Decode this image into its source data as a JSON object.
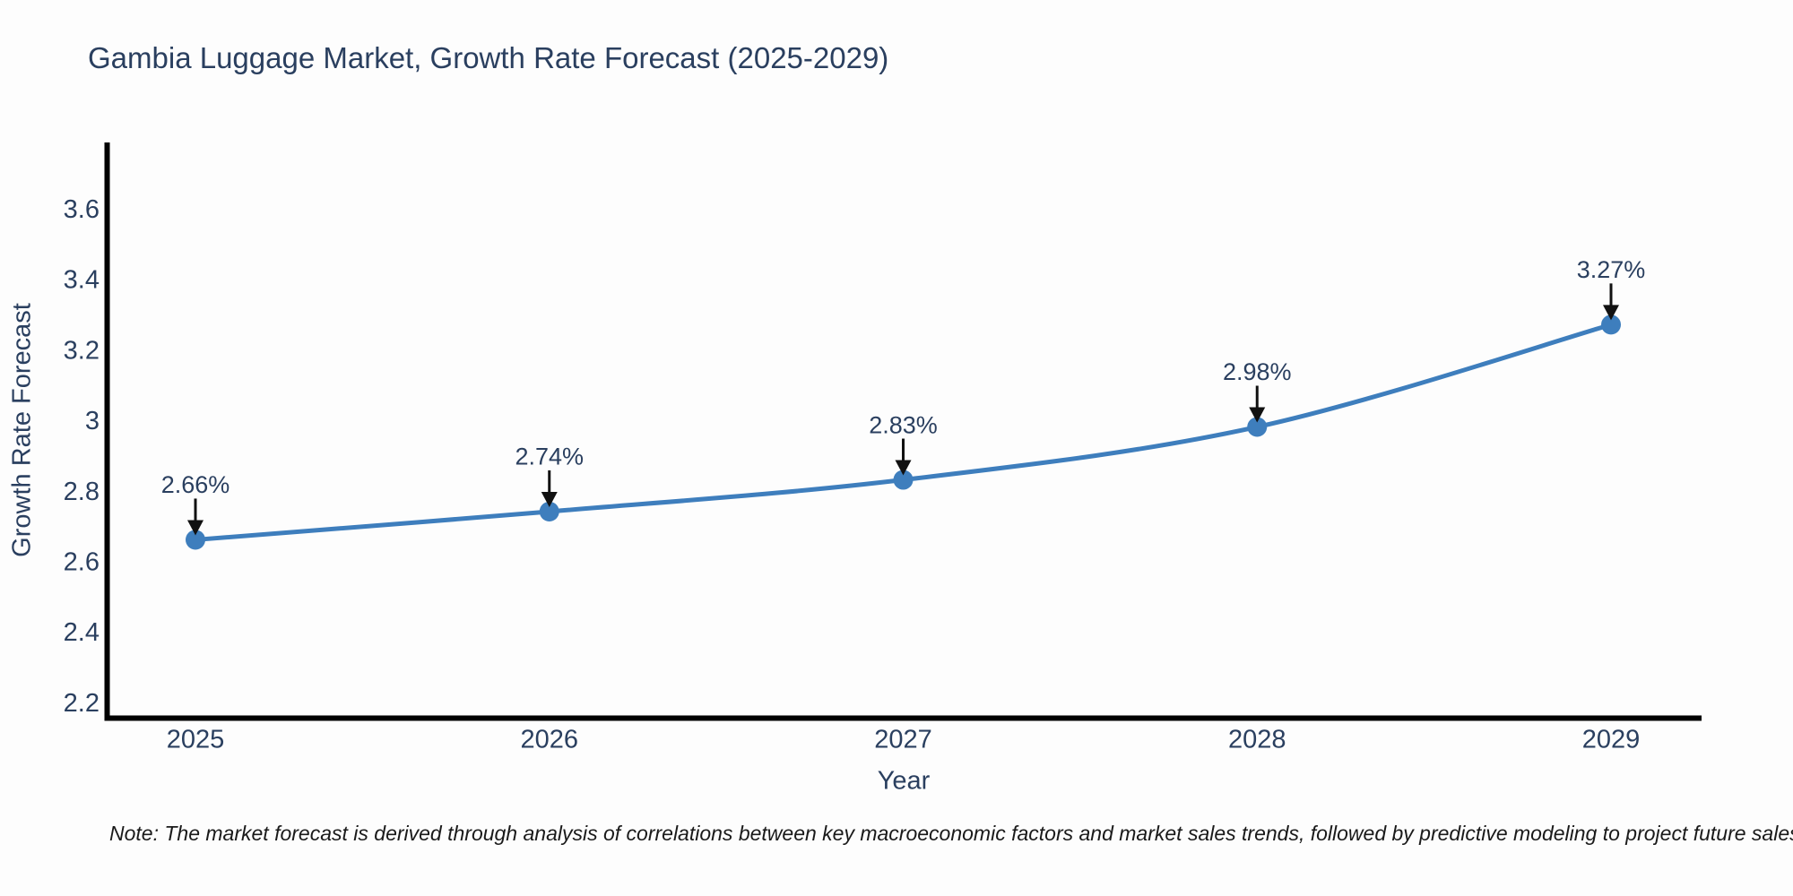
{
  "note": {
    "text": "Note: The market forecast is derived through analysis of correlations between key macroeconomic factors and market sales trends, followed by predictive modeling to project future sales"
  },
  "chart_data": {
    "type": "line",
    "title": "Gambia Luggage Market, Growth Rate Forecast (2025-2029)",
    "xlabel": "Year",
    "ylabel": "Growth Rate Forecast",
    "x": [
      2025,
      2026,
      2027,
      2028,
      2029
    ],
    "series": [
      {
        "name": "Growth Rate Forecast",
        "values": [
          2.66,
          2.74,
          2.83,
          2.98,
          3.27
        ],
        "point_labels": [
          "2.66%",
          "2.74%",
          "2.83%",
          "2.98%",
          "3.27%"
        ]
      }
    ],
    "yticks": [
      2.2,
      2.4,
      2.6,
      2.8,
      3,
      3.2,
      3.4,
      3.6
    ],
    "ylim": [
      2.15,
      3.85
    ],
    "grid": false,
    "legend": "none",
    "colors": {
      "line": "#3E7EBD",
      "marker": "#3E7EBD",
      "axis": "#000000",
      "text": "#2a3f5f",
      "annotation_arrow": "#111111",
      "background": "#fdfdfd"
    }
  }
}
